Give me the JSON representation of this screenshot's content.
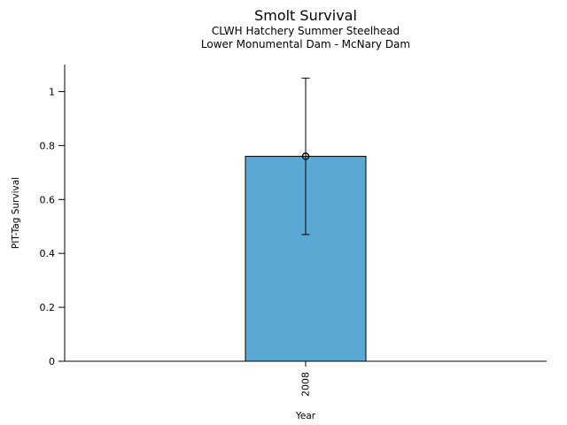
{
  "chart_data": {
    "type": "bar",
    "title": "Smolt Survival",
    "subtitle_line1": "CLWH Hatchery Summer Steelhead",
    "subtitle_line2": "Lower Monumental Dam - McNary Dam",
    "xlabel": "Year",
    "ylabel": "PIT-Tag Survival",
    "categories": [
      "2008"
    ],
    "values": [
      0.76
    ],
    "error_low": [
      0.47
    ],
    "error_high": [
      1.05
    ],
    "ytick_labels": [
      "0",
      "0.2",
      "0.4",
      "0.6",
      "0.8",
      "1"
    ],
    "ytick_values": [
      0,
      0.2,
      0.4,
      0.6,
      0.8,
      1
    ],
    "ylim": [
      0,
      1.1
    ],
    "grid": false,
    "legend_position": "none",
    "bar_color": "#5AA9D4",
    "bar_edge_color": "#000000",
    "error_bar_color": "#000000",
    "marker": "open-circle",
    "background_color": "#FFFFFF"
  }
}
